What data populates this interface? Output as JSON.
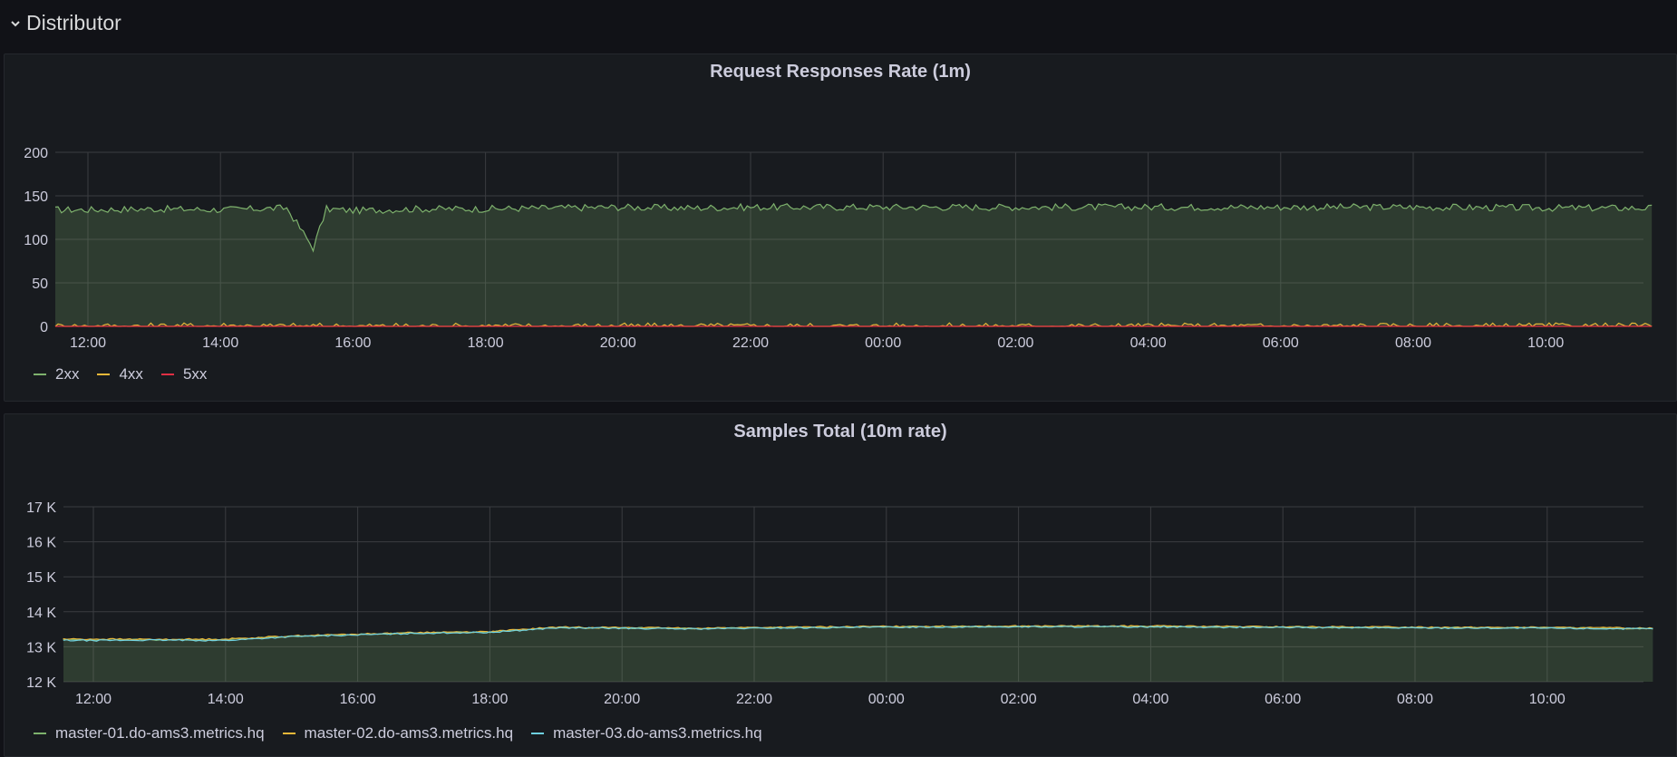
{
  "row": {
    "title": "Distributor",
    "collapse_icon": "chevron-down-icon"
  },
  "colors": {
    "background": "#111217",
    "panel": "#181b1f",
    "green": "#7eb26d",
    "yellow": "#eab839",
    "red": "#e02f44",
    "cyan": "#6ed0e0",
    "grid": "#3a3c40",
    "text": "#ccccdc"
  },
  "panels": [
    {
      "title": "Request Responses Rate (1m)"
    },
    {
      "title": "Samples Total (10m rate)"
    }
  ],
  "chart_data": [
    {
      "type": "line",
      "title": "Request Responses Rate (1m)",
      "xlabel": "",
      "ylabel": "",
      "ylim": [
        0,
        200
      ],
      "yticks": [
        "0",
        "50",
        "100",
        "150",
        "200"
      ],
      "xticks": [
        "12:00",
        "14:00",
        "16:00",
        "18:00",
        "20:00",
        "22:00",
        "00:00",
        "02:00",
        "04:00",
        "06:00",
        "08:00",
        "10:00"
      ],
      "x_hours": [
        0,
        1,
        2,
        3,
        3.4,
        3.6,
        4,
        5,
        6,
        7,
        8,
        9,
        10,
        12,
        14,
        16,
        18,
        20,
        22,
        23.6
      ],
      "grid": true,
      "legend_position": "bottom-left",
      "series": [
        {
          "name": "2xx",
          "color": "#7eb26d",
          "fill": true,
          "values": [
            134,
            135,
            134,
            136,
            90,
            135,
            133,
            135,
            135,
            136,
            137,
            136,
            137,
            137,
            137,
            137,
            137,
            137,
            136,
            136
          ]
        },
        {
          "name": "4xx",
          "color": "#eab839",
          "fill": false,
          "values": [
            0,
            0,
            1,
            0,
            0,
            0,
            0,
            0,
            0,
            0,
            0,
            0,
            0,
            0,
            0,
            0,
            0,
            0,
            0,
            0
          ]
        },
        {
          "name": "5xx",
          "color": "#e02f44",
          "fill": false,
          "values": [
            0,
            0,
            0,
            0,
            0,
            0,
            0,
            0,
            0,
            0,
            0,
            0,
            0,
            0,
            0,
            0,
            0,
            0,
            0,
            0
          ]
        }
      ]
    },
    {
      "type": "line",
      "title": "Samples Total (10m rate)",
      "xlabel": "",
      "ylabel": "",
      "ylim": [
        12000,
        17000
      ],
      "yticks": [
        "12 K",
        "13 K",
        "14 K",
        "15 K",
        "16 K",
        "17 K"
      ],
      "xticks": [
        "12:00",
        "14:00",
        "16:00",
        "18:00",
        "20:00",
        "22:00",
        "00:00",
        "02:00",
        "04:00",
        "06:00",
        "08:00",
        "10:00"
      ],
      "x_hours": [
        0,
        1,
        2,
        3,
        4,
        5,
        6,
        7,
        8,
        9,
        10,
        12,
        14,
        16,
        18,
        20,
        22,
        23.6
      ],
      "grid": true,
      "legend_position": "bottom-left",
      "series": [
        {
          "name": "master-01.do-ams3.metrics.hq",
          "color": "#7eb26d",
          "fill": true,
          "values": [
            13200,
            13200,
            13200,
            13300,
            13350,
            13400,
            13420,
            13550,
            13540,
            13520,
            13540,
            13570,
            13580,
            13580,
            13560,
            13550,
            13540,
            13520
          ]
        },
        {
          "name": "master-02.do-ams3.metrics.hq",
          "color": "#eab839",
          "fill": false,
          "values": [
            13220,
            13210,
            13220,
            13310,
            13360,
            13410,
            13430,
            13560,
            13550,
            13530,
            13550,
            13580,
            13590,
            13590,
            13570,
            13560,
            13550,
            13530
          ]
        },
        {
          "name": "master-03.do-ams3.metrics.hq",
          "color": "#6ed0e0",
          "fill": false,
          "values": [
            13180,
            13190,
            13180,
            13290,
            13340,
            13390,
            13410,
            13540,
            13530,
            13510,
            13530,
            13560,
            13570,
            13570,
            13550,
            13540,
            13530,
            13510
          ]
        }
      ]
    }
  ]
}
